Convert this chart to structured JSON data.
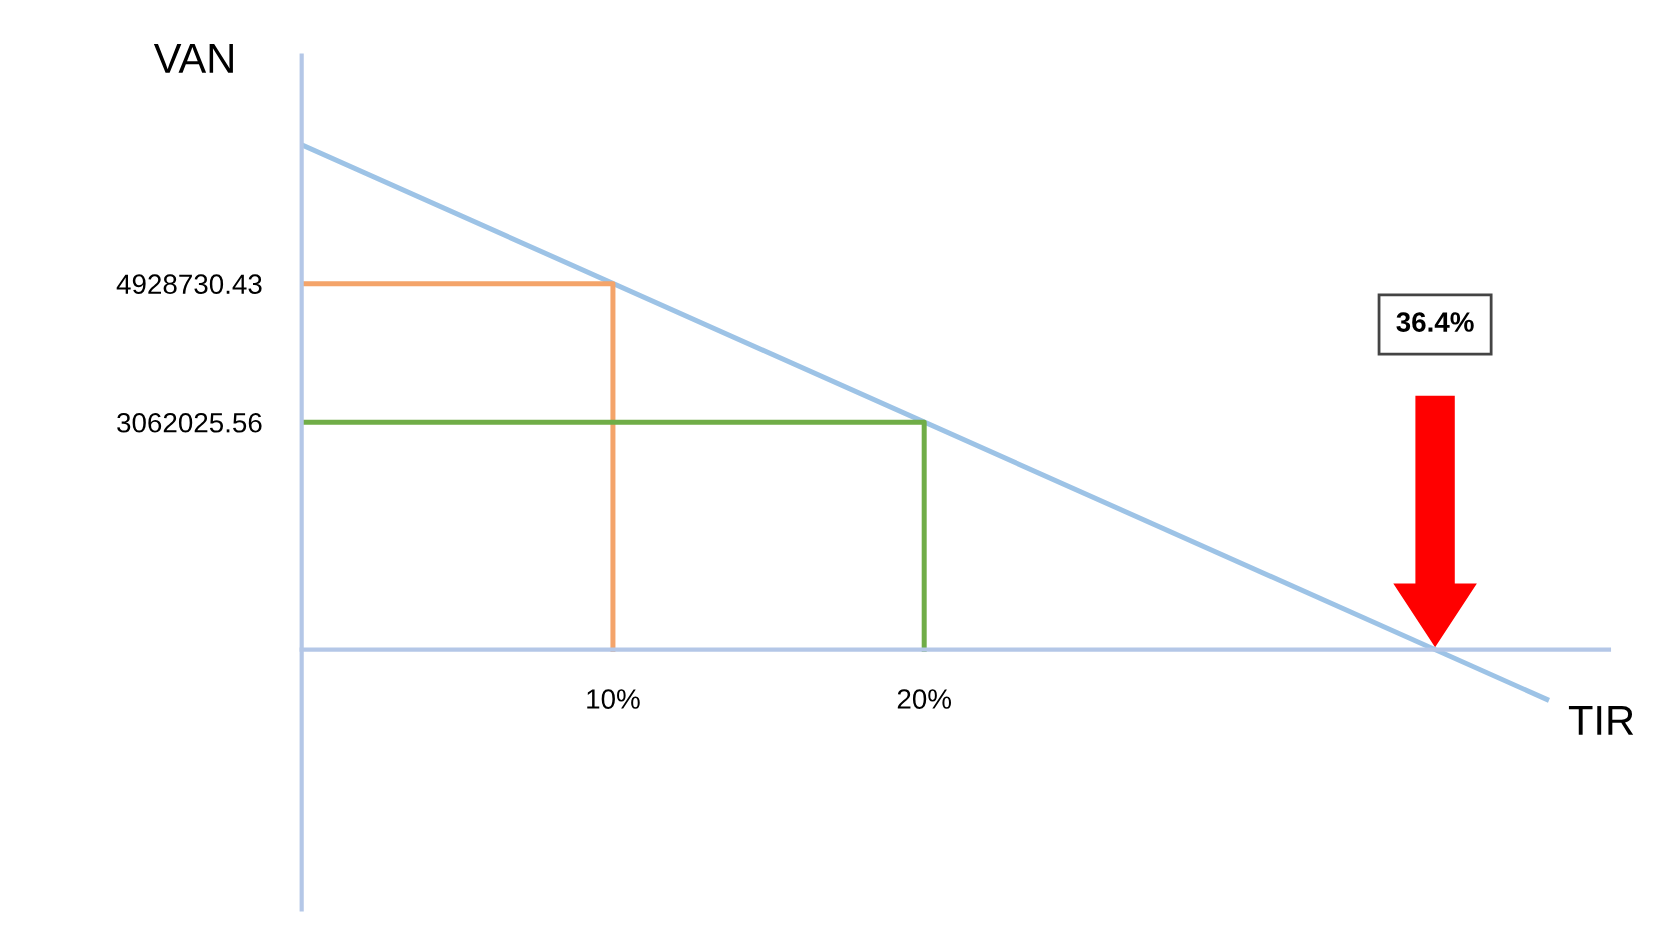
{
  "chart_data": {
    "type": "line",
    "xlabel": "TIR",
    "ylabel": "VAN",
    "xlim": [
      0,
      42
    ],
    "ylim": [
      -3500000,
      8000000
    ],
    "xticks": [
      {
        "value": 10,
        "label": "10%"
      },
      {
        "value": 20,
        "label": "20%"
      }
    ],
    "yticks": [
      {
        "value": 3062025.56,
        "label": "3062025.56"
      },
      {
        "value": 4928730.43,
        "label": "4928730.43"
      }
    ],
    "grid": false,
    "legend": false,
    "marker": "none",
    "line_style": "solid",
    "series": [
      {
        "color": "#9dc3e6",
        "x": [
          0,
          40
        ],
        "values": [
          6800000,
          -670000
        ]
      },
      {
        "color": "#f4a46a",
        "x": [
          0,
          10,
          10
        ],
        "values": [
          4928730.43,
          4928730.43,
          0
        ]
      },
      {
        "color": "#70ad47",
        "x": [
          0,
          20,
          20
        ],
        "values": [
          3062025.56,
          3062025.56,
          0
        ]
      }
    ],
    "annotations": [
      "36.4%"
    ]
  }
}
